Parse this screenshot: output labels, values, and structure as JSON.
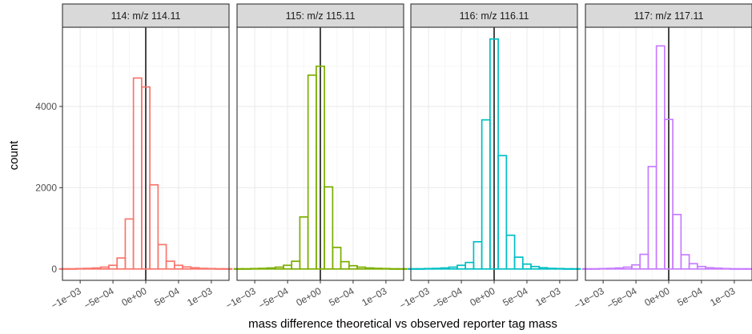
{
  "chart_data": {
    "type": "bar",
    "xlabel": "mass difference theoretical vs observed reporter tag mass",
    "ylabel": "count",
    "xlim": [
      -0.00127,
      0.00127
    ],
    "ylim": [
      -280,
      5950
    ],
    "x_ticks": [
      -0.001,
      -0.0005,
      0,
      0.0005,
      0.001
    ],
    "x_tick_labels": [
      "−1e−03",
      "−5e−04",
      "0e+00",
      "5e−04",
      "1e−03"
    ],
    "y_ticks": [
      0,
      2000,
      4000
    ],
    "y_tick_labels": [
      "0",
      "2000",
      "4000"
    ],
    "bin_width": 0.000125,
    "bin_centers": [
      -0.00125,
      -0.001125,
      -0.001,
      -0.000875,
      -0.00075,
      -0.000625,
      -0.0005,
      -0.000375,
      -0.00025,
      -0.000125,
      0,
      0.000125,
      0.00025,
      0.000375,
      0.0005,
      0.000625,
      0.00075,
      0.000875,
      0.001,
      0.001125,
      0.00125
    ],
    "vline_x": 0,
    "grid": true,
    "panels": [
      {
        "strip": "114: m/z 114.11",
        "color": "#F8766D",
        "counts": [
          5,
          5,
          10,
          15,
          25,
          45,
          90,
          270,
          1230,
          4700,
          4480,
          2070,
          600,
          190,
          90,
          50,
          30,
          15,
          10,
          5,
          5
        ]
      },
      {
        "strip": "115: m/z 115.11",
        "color": "#7CAE00",
        "counts": [
          5,
          5,
          10,
          15,
          25,
          45,
          90,
          190,
          1280,
          4770,
          4990,
          2020,
          530,
          180,
          80,
          45,
          25,
          15,
          10,
          5,
          5
        ]
      },
      {
        "strip": "116: m/z 116.11",
        "color": "#00BFC4",
        "counts": [
          5,
          5,
          10,
          15,
          25,
          45,
          90,
          160,
          670,
          3670,
          5660,
          2790,
          830,
          290,
          120,
          60,
          30,
          15,
          10,
          5,
          5
        ]
      },
      {
        "strip": "117: m/z 117.11",
        "color": "#C77CFF",
        "counts": [
          5,
          5,
          10,
          15,
          25,
          45,
          100,
          360,
          2520,
          5490,
          3680,
          1340,
          350,
          130,
          60,
          30,
          20,
          10,
          5,
          5,
          5
        ]
      }
    ]
  }
}
